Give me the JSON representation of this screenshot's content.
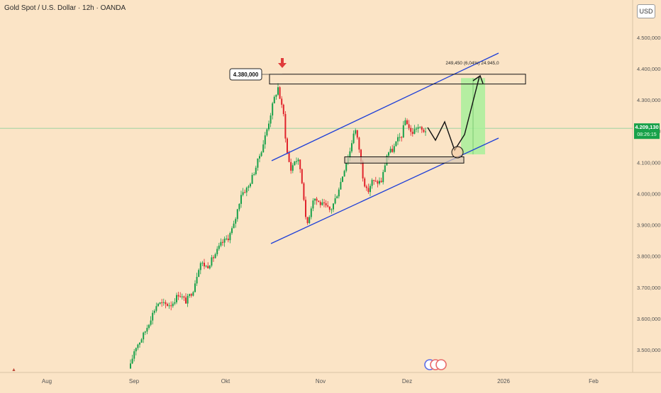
{
  "header": {
    "title": "Gold Spot / U.S. Dollar · 12h · OANDA",
    "currency_button": "USD"
  },
  "colors": {
    "background": "#fbe4c6",
    "up_candle": "#18a14a",
    "down_candle": "#e0232b",
    "channel": "#1e3fd8",
    "target_zone": "#a8f09a",
    "price_tag": "#18a14a"
  },
  "annotations": {
    "resistance_label": "4.380,000",
    "measure_label": "249,450 (6,04%) 24.945,0",
    "current_price": "4.209,130",
    "countdown": "08:26:15"
  },
  "chart_data": {
    "type": "candlestick",
    "title": "Gold Spot / U.S. Dollar · 12h · OANDA",
    "yaxis": {
      "range": [
        3440000,
        4560000
      ],
      "ticks": [
        3500000,
        3600000,
        3700000,
        3800000,
        3900000,
        4000000,
        4100000,
        4200000,
        4300000,
        4400000,
        4500000
      ],
      "tick_labels": [
        "3.500,000",
        "3.600,000",
        "3.700,000",
        "3.800,000",
        "3.900,000",
        "4.000,000",
        "4.100,000",
        "4.200,000",
        "4.300,000",
        "4.400,000",
        "4.500,000"
      ]
    },
    "xaxis": {
      "tick_labels": [
        "Aug",
        "Sep",
        "Okt",
        "Nov",
        "Dez",
        "2026",
        "Feb"
      ]
    },
    "levels": {
      "resistance_upper": 4380000,
      "resistance_lower": 4360000,
      "support_upper": 4120000,
      "support_lower": 4100000,
      "current_price": 4209130,
      "target": 4370000
    },
    "measure": {
      "change": 249450,
      "percent": 6.04
    }
  }
}
